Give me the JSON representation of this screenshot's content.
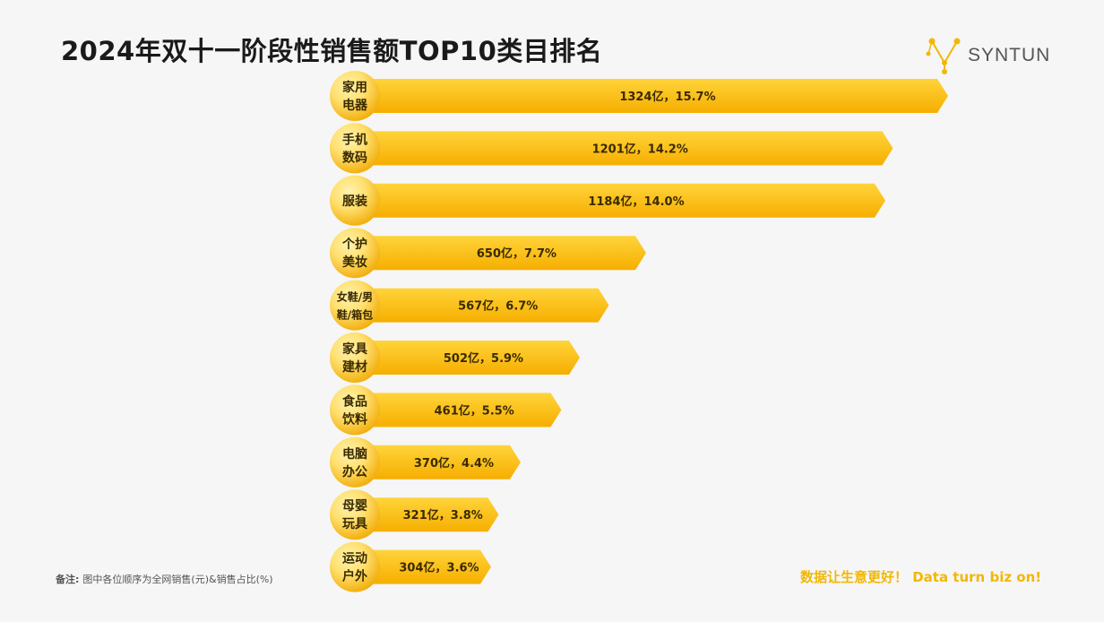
{
  "header": {
    "title": "2024年双十一阶段性销售额TOP10类目排名",
    "brand": "SYNTUN"
  },
  "footer": {
    "note_label": "备注:",
    "note_text": "图中各位顺序为全网销售(元)&销售占比(%)",
    "slogan": "数据让生意更好！ Data turn biz on!"
  },
  "colors": {
    "bar_light": "#ffd43a",
    "bar_dark": "#f6ae00",
    "badge_light": "#ffe070",
    "badge_dark": "#f0a800",
    "label_text": "#3a2a00",
    "logo_accent": "#f2b705"
  },
  "chart_data": {
    "type": "bar",
    "orientation": "horizontal",
    "title": "2024年双十一阶段性销售额TOP10类目排名",
    "categories": [
      [
        "家用",
        "电器"
      ],
      [
        "手机",
        "数码"
      ],
      [
        "服装"
      ],
      [
        "个护",
        "美妆"
      ],
      [
        "女鞋/男",
        "鞋/箱包"
      ],
      [
        "家具",
        "建材"
      ],
      [
        "食品",
        "饮料"
      ],
      [
        "电脑",
        "办公"
      ],
      [
        "母婴",
        "玩具"
      ],
      [
        "运动",
        "户外"
      ]
    ],
    "values": [
      1324,
      1201,
      1184,
      650,
      567,
      502,
      461,
      370,
      321,
      304
    ],
    "shares": [
      15.7,
      14.2,
      14.0,
      7.7,
      6.7,
      5.9,
      5.5,
      4.4,
      3.8,
      3.6
    ],
    "data_labels": [
      "1324亿，15.7%",
      "1201亿，14.2%",
      "1184亿，14.0%",
      "650亿，7.7%",
      "567亿，6.7%",
      "502亿，5.9%",
      "461亿，5.5%",
      "370亿，4.4%",
      "321亿，3.8%",
      "304亿，3.6%"
    ],
    "unit": "亿"
  }
}
